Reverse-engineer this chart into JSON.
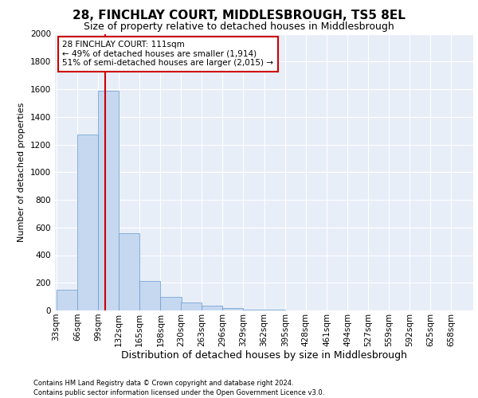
{
  "title": "28, FINCHLAY COURT, MIDDLESBROUGH, TS5 8EL",
  "subtitle": "Size of property relative to detached houses in Middlesbrough",
  "xlabel": "Distribution of detached houses by size in Middlesbrough",
  "ylabel": "Number of detached properties",
  "footnote1": "Contains HM Land Registry data © Crown copyright and database right 2024.",
  "footnote2": "Contains public sector information licensed under the Open Government Licence v3.0.",
  "annotation_title": "28 FINCHLAY COURT: 111sqm",
  "annotation_line1": "← 49% of detached houses are smaller (1,914)",
  "annotation_line2": "51% of semi-detached houses are larger (2,015) →",
  "bar_edges": [
    33,
    66,
    99,
    132,
    165,
    198,
    230,
    263,
    296,
    329,
    362,
    395,
    428,
    461,
    494,
    527,
    559,
    592,
    625,
    658,
    691
  ],
  "bar_heights": [
    150,
    1270,
    1590,
    560,
    215,
    100,
    55,
    35,
    20,
    5,
    3,
    2,
    1,
    1,
    1,
    1,
    1,
    1,
    1,
    1
  ],
  "bar_color": "#c5d8f0",
  "bar_edgecolor": "#6699cc",
  "vline_x": 111,
  "vline_color": "#cc0000",
  "annotation_box_color": "#cc0000",
  "plot_bg_color": "#e8eef8",
  "ylim": [
    0,
    2000
  ],
  "yticks": [
    0,
    200,
    400,
    600,
    800,
    1000,
    1200,
    1400,
    1600,
    1800,
    2000
  ],
  "grid_color": "#ffffff",
  "title_fontsize": 11,
  "subtitle_fontsize": 9,
  "xlabel_fontsize": 9,
  "ylabel_fontsize": 8,
  "tick_fontsize": 7.5,
  "footnote_fontsize": 6,
  "annotation_fontsize": 7.5
}
